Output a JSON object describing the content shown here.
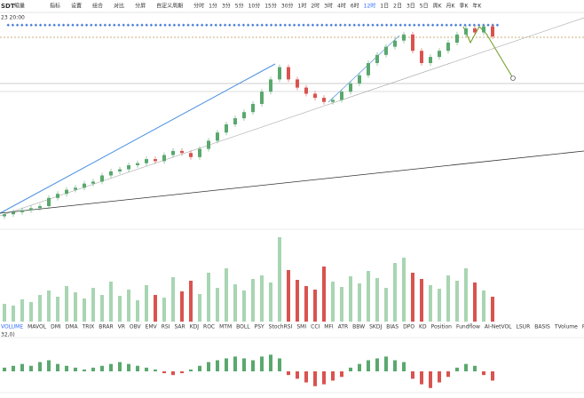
{
  "header": {
    "symbol": "SDT",
    "tag": "缩量",
    "time": "23 20:00"
  },
  "toolbar": [
    "指标",
    "设置",
    "组合",
    "对比",
    "分屏",
    "自定义周期"
  ],
  "periods": [
    "分时",
    "1分",
    "3分",
    "5分",
    "10分",
    "15分",
    "30分",
    "1时",
    "2时",
    "3时",
    "4时",
    "6时",
    "12时",
    "1日",
    "2日",
    "3日",
    "5日",
    "周K",
    "月K",
    "季K",
    "年K"
  ],
  "active_period": "12时",
  "indicators": [
    "VOLUME",
    "MAVOL",
    "DMI",
    "DMA",
    "TRIX",
    "BRAR",
    "VR",
    "OBV",
    "EMV",
    "RSI",
    "SAR",
    "KDJ",
    "ROC",
    "MTM",
    "BOLL",
    "PSY",
    "StochRSI",
    "SMI",
    "CCI",
    "MFI",
    "ATR",
    "BBW",
    "SKDJ",
    "BIAS",
    "DPO",
    "KD",
    "Position",
    "Fundflow",
    "AI-NetVOL",
    "LSUR",
    "BASIS",
    "TVolume",
    "FTBS",
    "TTSI",
    "TTMU",
    "AI-BSI",
    "MLR",
    "AI-PDI",
    "AI-PD",
    "AI-LI",
    "FR",
    "F"
  ],
  "macd_label": "32,0)",
  "price": {
    "open": 5,
    "closes": [
      6,
      7,
      8,
      9,
      10,
      14,
      16,
      18,
      19,
      21,
      22,
      25,
      27,
      28,
      30,
      31,
      33,
      32,
      35,
      37,
      36,
      34,
      38,
      42,
      46,
      50,
      53,
      56,
      60,
      66,
      72,
      78,
      72,
      68,
      65,
      63,
      61,
      62,
      66,
      70,
      74,
      80,
      84,
      88,
      91,
      94,
      86,
      80,
      83,
      86,
      90,
      94,
      97,
      95,
      98,
      93
    ],
    "ylim": [
      0,
      100
    ]
  },
  "volume": {
    "values": [
      20,
      18,
      25,
      22,
      30,
      35,
      28,
      40,
      33,
      26,
      38,
      30,
      45,
      29,
      36,
      24,
      41,
      30,
      27,
      50,
      34,
      46,
      31,
      55,
      38,
      60,
      42,
      35,
      48,
      52,
      44,
      95,
      58,
      47,
      40,
      36,
      62,
      45,
      39,
      51,
      43,
      57,
      49,
      38,
      66,
      72,
      55,
      48,
      41,
      37,
      52,
      46,
      60,
      44,
      35,
      28
    ],
    "ylim": [
      0,
      100
    ]
  },
  "macd": {
    "values": [
      2,
      3,
      4,
      3,
      5,
      6,
      4,
      3,
      2,
      1,
      2,
      3,
      4,
      5,
      4,
      3,
      2,
      1,
      -1,
      -2,
      -1,
      1,
      3,
      5,
      6,
      7,
      8,
      7,
      6,
      8,
      9,
      7,
      -2,
      -4,
      -6,
      -8,
      -7,
      -5,
      -3,
      2,
      4,
      6,
      7,
      8,
      6,
      5,
      -4,
      -7,
      -9,
      -6,
      -3,
      2,
      4,
      3,
      -2,
      -5
    ],
    "ylim": [
      -12,
      12
    ]
  }
}
